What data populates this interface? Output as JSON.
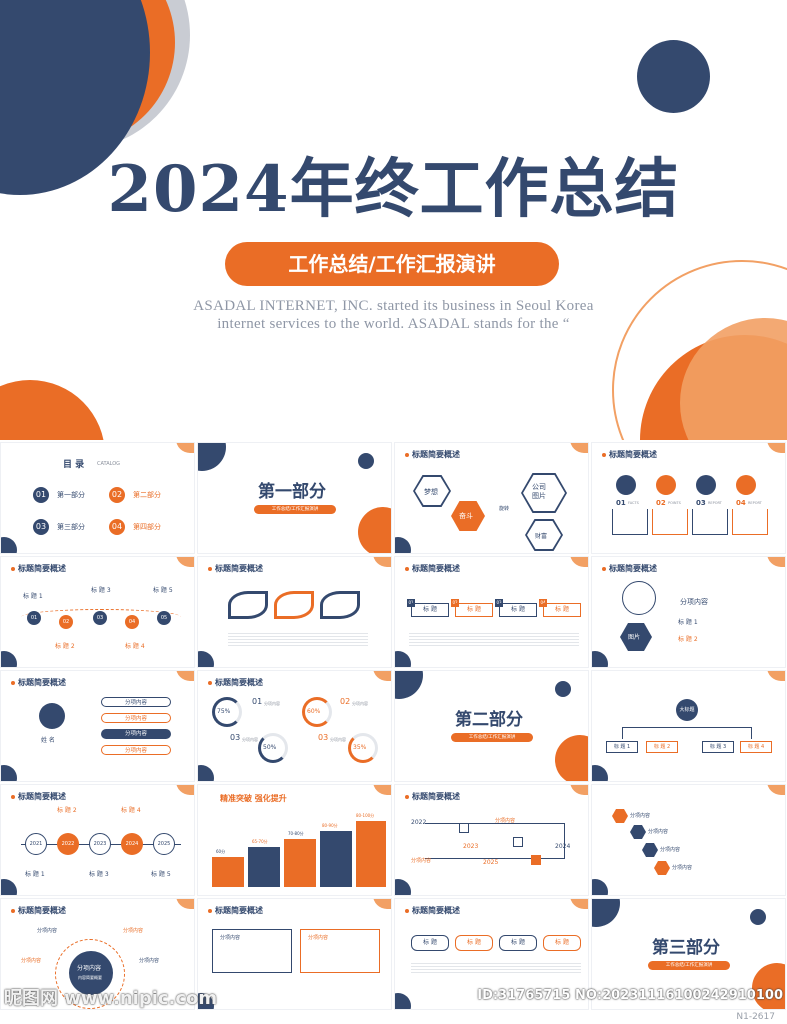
{
  "hero": {
    "title": "2024年终工作总结",
    "subtitle": "工作总结/工作汇报演讲",
    "english_line1": "ASADAL INTERNET, INC. started its business in Seoul Korea",
    "english_line2": "internet services to the world. ASADAL stands for the “"
  },
  "colors": {
    "navy": "#34496e",
    "orange": "#ea6d26",
    "light_orange": "#f2a064",
    "gray": "#c9ccd3"
  },
  "slides": {
    "s1": {
      "title": "目 录",
      "title_en": "CATALOG",
      "items": [
        {
          "n": "01",
          "label": "第一部分"
        },
        {
          "n": "02",
          "label": "第二部分"
        },
        {
          "n": "03",
          "label": "第三部分"
        },
        {
          "n": "04",
          "label": "第四部分"
        }
      ]
    },
    "s2": {
      "title": "第一部分",
      "pill": "工作总结/工作汇报演讲"
    },
    "s3": {
      "title": "标题简要概述",
      "dream": "梦想",
      "fight": "奋斗",
      "company": "公司\n图片",
      "rotate": "旋转",
      "wealth": "财富"
    },
    "s4": {
      "title": "标题简要概述",
      "nums": [
        "01",
        "02",
        "03",
        "04"
      ],
      "tags": [
        "FACTS",
        "POINTS",
        "REPORT",
        "REPORT"
      ]
    },
    "s5": {
      "title": "标题简要概述",
      "labels": [
        "标 题 1",
        "标 题 2",
        "标 题 3",
        "标 题 4",
        "标 题 5"
      ],
      "nums": [
        "01",
        "02",
        "03",
        "04",
        "05"
      ]
    },
    "s6": {
      "title": "标题简要概述"
    },
    "s7": {
      "title": "标题简要概述",
      "nums": [
        "01",
        "02",
        "03",
        "04"
      ],
      "labels": [
        "标 题",
        "标 题",
        "标 题",
        "标 题"
      ]
    },
    "s8": {
      "title": "标题简要概述",
      "heading": "分项内容",
      "item1": "标 题 1",
      "item2": "标 题 2",
      "pic": "图片"
    },
    "s9": {
      "title": "标题简要概述",
      "name": "姓 名",
      "pills": [
        "分项内容",
        "分项内容",
        "分项内容",
        "分项内容"
      ]
    },
    "s10": {
      "title": "标题简要概述",
      "percents": [
        "75%",
        "60%",
        "50%",
        "35%"
      ],
      "nums": [
        "01",
        "02",
        "03",
        "03"
      ],
      "labels": [
        "分项内容",
        "分项内容",
        "分项内容",
        "分项内容"
      ]
    },
    "s11": {
      "title": "第二部分",
      "pill": "工作总结/工作汇报演讲"
    },
    "s12": {
      "title": "标题简要概述",
      "center": "大标题",
      "labels": [
        "标 题 1",
        "标 题 2",
        "标 题 3",
        "标 题 4"
      ]
    },
    "s13": {
      "title": "标题简要概述",
      "years": [
        "2021",
        "2022",
        "2023",
        "2024",
        "2025"
      ],
      "labels": [
        "标 题 1",
        "标 题 2",
        "标 题 3",
        "标 题 4",
        "标 题 5"
      ]
    },
    "s14": {
      "title": "精准突破 强化提升",
      "values": [
        "60分",
        "65-70分",
        "70-80分",
        "80-90分",
        "80-100分"
      ]
    },
    "s15": {
      "title": "标题简要概述",
      "years": [
        "2022",
        "2023",
        "2024",
        "2025"
      ],
      "labels": [
        "分项内容",
        "分项内容"
      ]
    },
    "s16": {
      "title": "标题简要概述",
      "labels": [
        "分项内容",
        "分项内容",
        "分项内容",
        "分项内容"
      ]
    },
    "s17": {
      "title": "标题简要概述",
      "center": "分项内容",
      "center_sub": "内容简要概要",
      "labels": [
        "分项内容",
        "分项内容",
        "分项内容",
        "分项内容"
      ]
    },
    "s18": {
      "title": "标题简要概述",
      "labels": [
        "分项内容",
        "分项内容"
      ]
    },
    "s19": {
      "title": "标题简要概述",
      "labels": [
        "标 题",
        "标 题",
        "标 题",
        "标 题"
      ]
    },
    "s20": {
      "title": "第三部分",
      "pill": "工作总结/工作汇报演讲"
    }
  },
  "watermark": {
    "left": "昵图网 www.nipic.com",
    "right": "ID:31765715 NO:20231116100242910100",
    "code": "N1-2617"
  }
}
